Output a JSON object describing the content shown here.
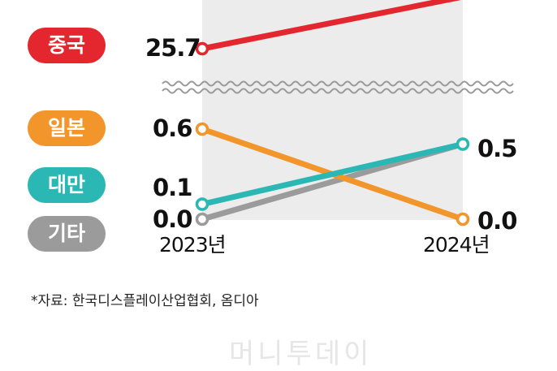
{
  "chart_data": {
    "type": "line",
    "categories": [
      "2023년",
      "2024년"
    ],
    "series": [
      {
        "name": "중국",
        "values": [
          25.7,
          null
        ],
        "color": "#e4262e"
      },
      {
        "name": "일본",
        "values": [
          0.6,
          0.0
        ],
        "color": "#f2952a"
      },
      {
        "name": "대만",
        "values": [
          0.1,
          0.5
        ],
        "color": "#2bb8b4"
      },
      {
        "name": "기타",
        "values": [
          0.0,
          null
        ],
        "color": "#9b9b9b"
      }
    ],
    "value_labels": {
      "china_2023": "25.7",
      "japan_2023": "0.6",
      "taiwan_2023": "0.1",
      "others_2023": "0.0",
      "taiwan_2024": "0.5",
      "japan_2024": "0.0"
    },
    "axis_break": true,
    "grid": false
  },
  "legend": {
    "china": "중국",
    "japan": "일본",
    "taiwan": "대만",
    "others": "기타"
  },
  "source": "*자료: 한국디스플레이산업협회, 옴디아",
  "watermark": "머니투데이"
}
